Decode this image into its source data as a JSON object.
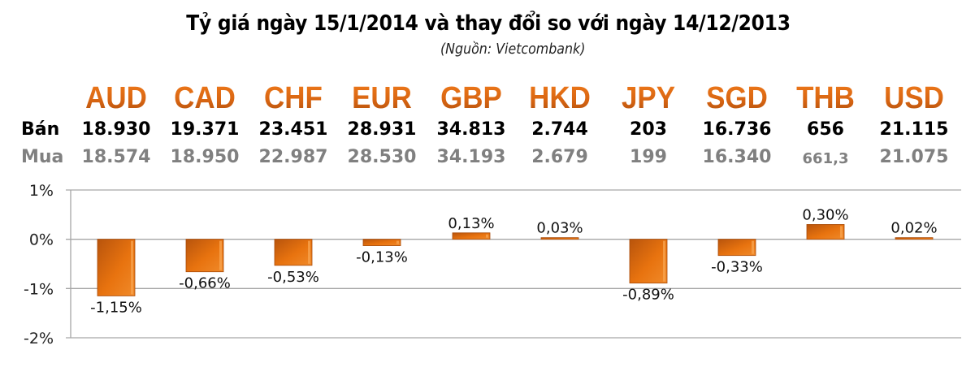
{
  "header": {
    "title": "Tỷ giá ngày 15/1/2014 và thay đổi so với ngày 14/12/2013",
    "source": "(Nguồn: Vietcombank)"
  },
  "table": {
    "sell_label": "Bán",
    "buy_label": "Mua",
    "currencies": [
      "AUD",
      "CAD",
      "CHF",
      "EUR",
      "GBP",
      "HKD",
      "JPY",
      "SGD",
      "THB",
      "USD"
    ],
    "sell": [
      "18.930",
      "19.371",
      "23.451",
      "28.931",
      "34.813",
      "2.744",
      "203",
      "16.736",
      "656",
      "21.115"
    ],
    "buy": [
      "18.574",
      "18.950",
      "22.987",
      "28.530",
      "34.193",
      "2.679",
      "199",
      "16.340",
      "661,3",
      "21.075"
    ]
  },
  "colors": {
    "accent": "#e06a10",
    "bar": "#e2700f",
    "bar_dark": "#a84a08",
    "sell_text": "#000000",
    "buy_text": "#808080",
    "grid": "#a6a6a6"
  },
  "chart_data": {
    "type": "bar",
    "title": "Tỷ giá ngày 15/1/2014 và thay đổi so với ngày 14/12/2013",
    "subtitle": "(Nguồn: Vietcombank)",
    "categories": [
      "AUD",
      "CAD",
      "CHF",
      "EUR",
      "GBP",
      "HKD",
      "JPY",
      "SGD",
      "THB",
      "USD"
    ],
    "values": [
      -1.15,
      -0.66,
      -0.53,
      -0.13,
      0.13,
      0.03,
      -0.89,
      -0.33,
      0.3,
      0.02
    ],
    "data_labels": [
      "-1,15%",
      "-0,66%",
      "-0,53%",
      "-0,13%",
      "0,13%",
      "0,03%",
      "-0,89%",
      "-0,33%",
      "0,30%",
      "0,02%"
    ],
    "yticks": [
      1,
      0,
      -1,
      -2
    ],
    "ytick_labels": [
      "1%",
      "0%",
      "-1%",
      "-2%"
    ],
    "ylim": [
      -2,
      1
    ],
    "xlabel": "",
    "ylabel": "",
    "grid": true,
    "unit": "%"
  }
}
